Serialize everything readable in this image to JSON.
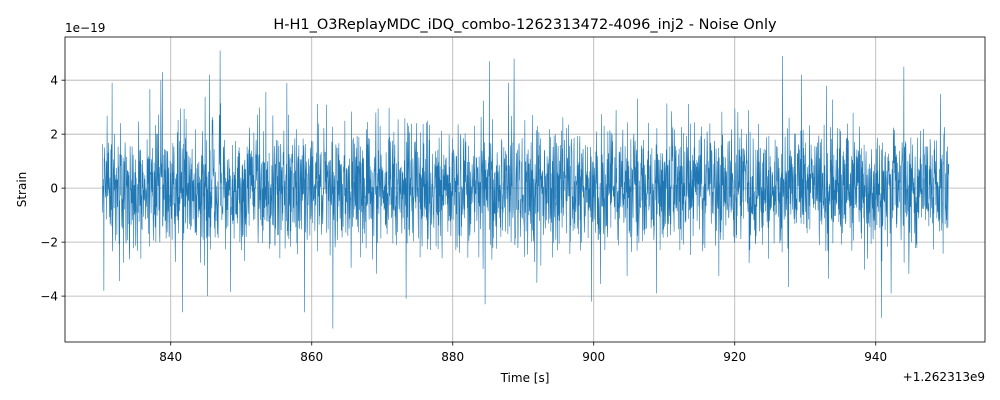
{
  "chart_data": {
    "type": "line",
    "title": "H-H1_O3ReplayMDC_iDQ_combo-1262313472-4096_inj2 - Noise Only",
    "xlabel": "Time [s]",
    "ylabel": "Strain",
    "x_offset_label": "+1.262313e9",
    "y_scale_label": "1e−19",
    "xlim": [
      825.0,
      955.5
    ],
    "ylim": [
      -5.7,
      5.6
    ],
    "x_range": [
      830.3,
      950.4
    ],
    "x_ticks": [
      840,
      860,
      880,
      900,
      920,
      940
    ],
    "x_tick_labels": [
      "840",
      "860",
      "880",
      "900",
      "920",
      "940"
    ],
    "y_ticks": [
      -4,
      -2,
      0,
      2,
      4
    ],
    "y_tick_labels": [
      "−4",
      "−2",
      "0",
      "2",
      "4"
    ],
    "grid": true,
    "series": [
      {
        "color": "#1f77b4",
        "noise_rms": 1.15,
        "peaks": [
          {
            "x": 847.0,
            "y": 5.1
          },
          {
            "x": 845.5,
            "y": 4.2
          },
          {
            "x": 838.8,
            "y": 4.3
          },
          {
            "x": 885.2,
            "y": 4.7
          },
          {
            "x": 888.7,
            "y": 4.8
          },
          {
            "x": 926.8,
            "y": 4.9
          },
          {
            "x": 944.0,
            "y": 4.5
          },
          {
            "x": 838.6,
            "y": 4.0
          },
          {
            "x": 831.7,
            "y": 3.9
          },
          {
            "x": 929.5,
            "y": 4.2
          },
          {
            "x": 863.0,
            "y": -5.2
          },
          {
            "x": 841.7,
            "y": -4.6
          },
          {
            "x": 859.0,
            "y": -4.6
          },
          {
            "x": 940.8,
            "y": -4.8
          },
          {
            "x": 884.6,
            "y": -4.3
          },
          {
            "x": 873.4,
            "y": -4.1
          },
          {
            "x": 899.7,
            "y": -4.2
          },
          {
            "x": 830.5,
            "y": -3.8
          },
          {
            "x": 845.2,
            "y": -4.0
          },
          {
            "x": 908.9,
            "y": -3.9
          }
        ]
      }
    ]
  }
}
